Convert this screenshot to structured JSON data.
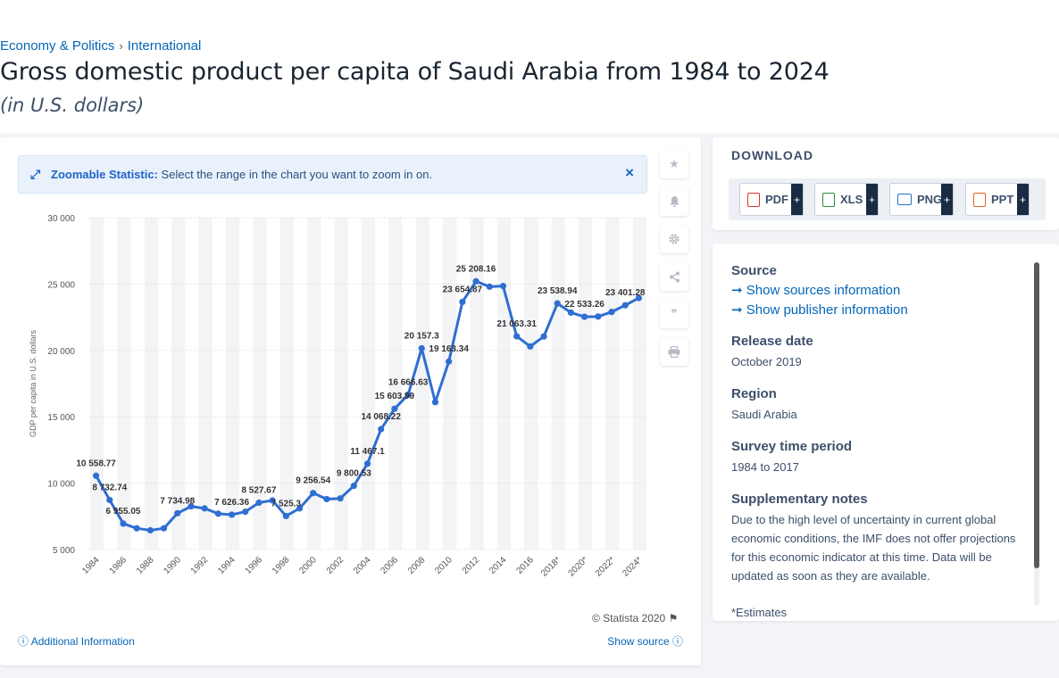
{
  "breadcrumb": {
    "item1": "Economy & Politics",
    "sep": "›",
    "item2": "International"
  },
  "title": "Gross domestic product per capita of Saudi Arabia from 1984 to 2024",
  "subtitle": "(in U.S. dollars)",
  "zoom": {
    "icon": "expand-arrows-icon",
    "label": "Zoomable Statistic:",
    "text": "Select the range in the chart you want to zoom in on.",
    "close": "×"
  },
  "tools": [
    "star-icon",
    "bell-icon",
    "gear-icon",
    "share-icon",
    "quote-icon",
    "print-icon"
  ],
  "copyright": "© Statista 2020",
  "additional_info": "Additional Information",
  "show_source": "Show source",
  "download": {
    "title": "DOWNLOAD",
    "buttons": [
      {
        "label": "PDF",
        "plus": "+",
        "color": "#d9342b"
      },
      {
        "label": "XLS",
        "plus": "+",
        "color": "#2e8b3a"
      },
      {
        "label": "PNG",
        "plus": "+",
        "color": "#2a6fd1"
      },
      {
        "label": "PPT",
        "plus": "+",
        "color": "#e2661c"
      }
    ]
  },
  "info": {
    "source_h": "Source",
    "sources_link": "Show sources information",
    "publisher_link": "Show publisher information",
    "release_h": "Release date",
    "release_v": "October 2019",
    "region_h": "Region",
    "region_v": "Saudi Arabia",
    "survey_h": "Survey time period",
    "survey_v": "1984 to 2017",
    "notes_h": "Supplementary notes",
    "notes_v": "Due to the high level of uncertainty in current global economic conditions, the IMF does not offer projections for this economic indicator at this time. Data will be updated as soon as they are available.",
    "estimate": "*Estimates"
  },
  "chart_data": {
    "type": "line",
    "ylabel": "GDP per capita in U.S. dollars",
    "ylim": [
      5000,
      30000
    ],
    "yticks": [
      "5 000",
      "10 000",
      "15 000",
      "20 000",
      "25 000",
      "30 000"
    ],
    "ytick_values": [
      5000,
      10000,
      15000,
      20000,
      25000,
      30000
    ],
    "color": "#2f6fd1",
    "grid": true,
    "x": [
      "1984",
      "1985",
      "1986",
      "1987",
      "1988",
      "1989",
      "1990",
      "1991",
      "1992",
      "1993",
      "1994",
      "1995",
      "1996",
      "1997",
      "1998",
      "1999",
      "2000",
      "2001",
      "2002",
      "2003",
      "2004",
      "2005",
      "2006",
      "2007",
      "2008",
      "2009",
      "2010",
      "2011",
      "2012",
      "2013",
      "2014",
      "2015",
      "2016",
      "2017",
      "2018*",
      "2019*",
      "2020*",
      "2021*",
      "2022*",
      "2023*",
      "2024*"
    ],
    "xtick_labels": [
      "1984",
      "1986",
      "1988",
      "1990",
      "1992",
      "1994",
      "1996",
      "1998",
      "2000",
      "2002",
      "2004",
      "2006",
      "2008",
      "2010",
      "2012",
      "2014",
      "2016",
      "2018*",
      "2020*",
      "2022*",
      "2024*"
    ],
    "values": [
      10558.77,
      8732.74,
      6955.05,
      6600,
      6450,
      6600,
      7734.98,
      8250,
      8100,
      7700,
      7626.36,
      7850,
      8527.67,
      8700,
      7525.3,
      8100,
      9256.54,
      8800,
      8850,
      9800.53,
      11467.1,
      14068.22,
      15603.99,
      16666.63,
      20157.3,
      16100,
      19163.34,
      23654.87,
      25208.16,
      24800,
      24850,
      21063.31,
      20300,
      21050,
      23538.94,
      22850,
      22533.26,
      22550,
      22900,
      23401.28,
      23950
    ],
    "data_labels": [
      {
        "x": "1984",
        "text": "10 558.77"
      },
      {
        "x": "1985",
        "text": "8 732.74"
      },
      {
        "x": "1986",
        "text": "6 955.05"
      },
      {
        "x": "1990",
        "text": "7 734.98"
      },
      {
        "x": "1994",
        "text": "7 626.36"
      },
      {
        "x": "1996",
        "text": "8 527.67"
      },
      {
        "x": "1998",
        "text": "7 525.3"
      },
      {
        "x": "2000",
        "text": "9 256.54"
      },
      {
        "x": "2003",
        "text": "9 800.53"
      },
      {
        "x": "2004",
        "text": "11 467.1"
      },
      {
        "x": "2005",
        "text": "14 068.22"
      },
      {
        "x": "2006",
        "text": "15 603.99"
      },
      {
        "x": "2007",
        "text": "16 666.63"
      },
      {
        "x": "2008",
        "text": "20 157.3"
      },
      {
        "x": "2010",
        "text": "19 163.34"
      },
      {
        "x": "2011",
        "text": "23 654.87"
      },
      {
        "x": "2012",
        "text": "25 208.16"
      },
      {
        "x": "2015",
        "text": "21 063.31"
      },
      {
        "x": "2018*",
        "text": "23 538.94"
      },
      {
        "x": "2020*",
        "text": "22 533.26"
      },
      {
        "x": "2023*",
        "text": "23 401.28"
      }
    ]
  }
}
